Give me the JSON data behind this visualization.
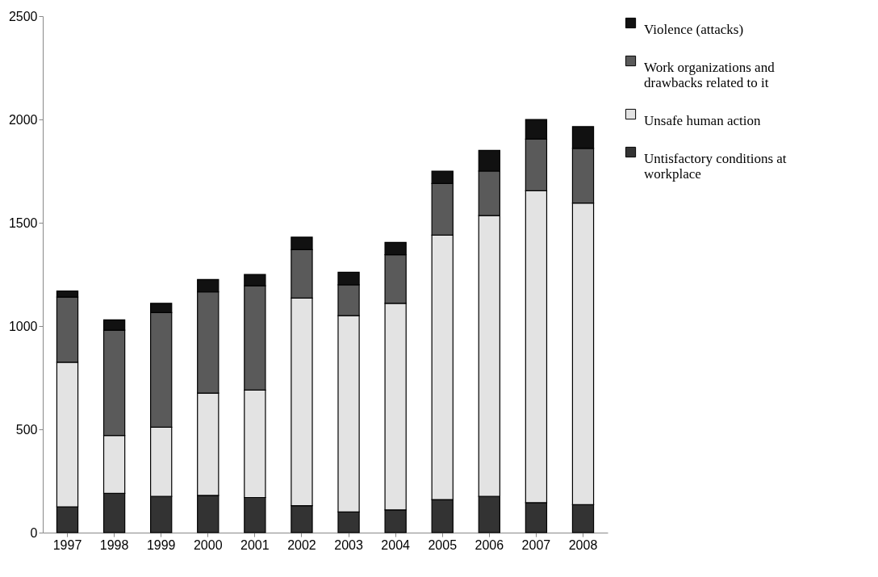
{
  "chart_data": {
    "type": "bar",
    "stacked": true,
    "categories": [
      "1997",
      "1998",
      "1999",
      "2000",
      "2001",
      "2002",
      "2003",
      "2004",
      "2005",
      "2006",
      "2007",
      "2008"
    ],
    "series": [
      {
        "name": "Untisfactory conditions at workplace",
        "color": "#333333",
        "values": [
          125,
          190,
          175,
          180,
          170,
          130,
          100,
          110,
          160,
          175,
          145,
          135
        ]
      },
      {
        "name": "Unsafe human action",
        "color": "#e3e3e3",
        "values": [
          700,
          280,
          335,
          495,
          520,
          1005,
          950,
          1000,
          1280,
          1360,
          1510,
          1460
        ]
      },
      {
        "name": "Work organizations and drawbacks related to it",
        "color": "#5a5a5a",
        "values": [
          315,
          510,
          555,
          490,
          505,
          235,
          150,
          235,
          250,
          215,
          250,
          265
        ]
      },
      {
        "name": "Violence (attacks)",
        "color": "#111111",
        "values": [
          30,
          50,
          45,
          60,
          55,
          60,
          60,
          60,
          60,
          100,
          95,
          105
        ]
      }
    ],
    "ylim": [
      0,
      2500
    ],
    "yticks": [
      0,
      500,
      1000,
      1500,
      2000,
      2500
    ],
    "grid": false,
    "legend": "right"
  }
}
